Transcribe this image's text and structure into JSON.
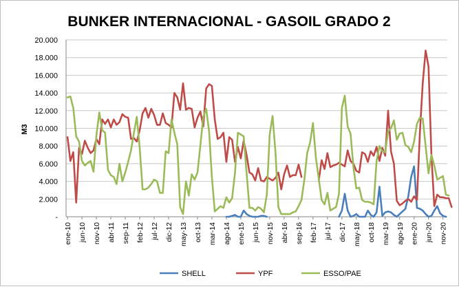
{
  "chart_data": {
    "type": "line",
    "title": "BUNKER INTERNACIONAL - GASOIL GRADO 2",
    "ylabel": "M3",
    "xlabel": "",
    "ylim": [
      0,
      20000
    ],
    "yticks": [
      0,
      2000,
      4000,
      6000,
      8000,
      10000,
      12000,
      14000,
      16000,
      18000,
      20000
    ],
    "ytick_labels": [
      "-",
      "2.000",
      "4.000",
      "6.000",
      "8.000",
      "10.000",
      "12.000",
      "14.000",
      "16.000",
      "18.000",
      "20.000"
    ],
    "x_start": "ene-10",
    "x_end": "dic-20",
    "x_tick_labels": [
      "ene-10",
      "jun-10",
      "nov-10",
      "abr-11",
      "sep-11",
      "feb-12",
      "jul-12",
      "dic-12",
      "may-13",
      "oct-13",
      "mar-14",
      "ago-14",
      "ene-15",
      "jun-15",
      "nov-15",
      "abr-16",
      "sep-16",
      "feb-17",
      "jul-17",
      "dic-17",
      "may-18",
      "oct-18",
      "mar-19",
      "ago-19",
      "ene-20",
      "jun-20",
      "nov-20"
    ],
    "grid": true,
    "legend_position": "bottom",
    "series": [
      {
        "name": "SHELL",
        "color": "#4a7ebb",
        "values": [
          null,
          null,
          null,
          null,
          null,
          null,
          null,
          null,
          null,
          null,
          null,
          null,
          null,
          null,
          null,
          null,
          null,
          null,
          null,
          null,
          null,
          null,
          null,
          null,
          null,
          null,
          null,
          null,
          null,
          null,
          null,
          null,
          null,
          null,
          null,
          null,
          null,
          null,
          null,
          null,
          null,
          null,
          null,
          null,
          null,
          null,
          null,
          null,
          null,
          null,
          null,
          null,
          null,
          null,
          null,
          0,
          0,
          100,
          200,
          0,
          0,
          700,
          300,
          100,
          0,
          0,
          0,
          100,
          100,
          0,
          null,
          null,
          null,
          null,
          null,
          null,
          null,
          null,
          null,
          null,
          null,
          null,
          null,
          null,
          null,
          null,
          null,
          null,
          null,
          null,
          null,
          null,
          null,
          null,
          0,
          700,
          2600,
          700,
          0,
          100,
          300,
          0,
          0,
          0,
          700,
          200,
          0,
          500,
          3400,
          100,
          500,
          600,
          500,
          200,
          0,
          300,
          600,
          900,
          2300,
          4500,
          5700,
          1000,
          900,
          700,
          300,
          0,
          100,
          700,
          1200,
          400,
          100,
          0
        ]
      },
      {
        "name": "YPF",
        "color": "#be4b48",
        "values": [
          9000,
          6300,
          7300,
          1600,
          7800,
          7100,
          8600,
          7800,
          7200,
          7500,
          8800,
          8200,
          11000,
          10500,
          11000,
          10100,
          11000,
          10400,
          10700,
          11600,
          11300,
          11200,
          8800,
          8900,
          8500,
          9800,
          11700,
          12300,
          11200,
          12200,
          11500,
          10400,
          10400,
          11700,
          10600,
          10400,
          10100,
          14000,
          13500,
          12100,
          15100,
          12100,
          12300,
          12200,
          10100,
          11200,
          11900,
          10200,
          14500,
          15000,
          14800,
          11000,
          8800,
          9000,
          9500,
          6200,
          9000,
          8700,
          6200,
          7900,
          6600,
          8600,
          7000,
          5000,
          4800,
          4100,
          5500,
          4100,
          4000,
          4500,
          4300,
          4100,
          4400,
          5000,
          3100,
          4800,
          5800,
          4500,
          4700,
          4700,
          5900,
          4500,
          null,
          null,
          null,
          null,
          null,
          4100,
          6400,
          5400,
          7200,
          5600,
          5800,
          5900,
          6100,
          5900,
          5700,
          7500,
          6300,
          6000,
          5200,
          5000,
          7300,
          7100,
          6200,
          7400,
          6900,
          7900,
          6300,
          7800,
          6900,
          12000,
          7400,
          6000,
          1800,
          1300,
          1500,
          1800,
          2000,
          1700,
          2300,
          1900,
          9400,
          15100,
          18800,
          17000,
          7000,
          1200,
          2500,
          2200,
          2200,
          2100,
          2100,
          1100
        ]
      },
      {
        "name": "ESSO/PAE",
        "color": "#9bbb59",
        "values": [
          13500,
          13600,
          12300,
          9100,
          8500,
          6300,
          5800,
          6100,
          6300,
          5100,
          9200,
          11800,
          9800,
          9500,
          5300,
          4700,
          4500,
          3700,
          6000,
          4000,
          5000,
          6200,
          7500,
          9500,
          11300,
          7800,
          3100,
          3100,
          3300,
          3700,
          4200,
          4000,
          2700,
          2700,
          7400,
          7200,
          11000,
          9500,
          8200,
          1100,
          300,
          4000,
          2400,
          4800,
          4200,
          5000,
          8100,
          11300,
          12200,
          9700,
          4500,
          600,
          900,
          1200,
          1000,
          2200,
          1600,
          2100,
          5000,
          9500,
          9300,
          9100,
          5000,
          1000,
          1000,
          700,
          1100,
          900,
          500,
          2500,
          9300,
          11400,
          7300,
          1100,
          300,
          300,
          300,
          300,
          500,
          600,
          1200,
          1900,
          4200,
          7200,
          8400,
          10600,
          6700,
          4300,
          1900,
          1400,
          2700,
          700,
          900,
          1100,
          2600,
          12300,
          13700,
          10200,
          9400,
          5600,
          3200,
          3300,
          1900,
          1700,
          1700,
          1600,
          1400,
          6300,
          8000,
          7400,
          7300,
          9700,
          10000,
          10900,
          8700,
          9400,
          9500,
          8100,
          7900,
          7300,
          8500,
          10500,
          11200,
          11100,
          8000,
          4900,
          7000,
          5800,
          4200,
          4400,
          4600,
          2500,
          2400
        ]
      }
    ]
  }
}
